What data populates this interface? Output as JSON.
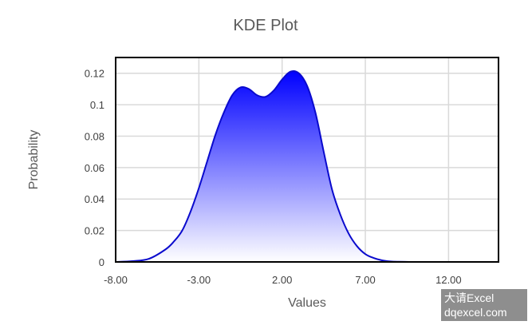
{
  "chart_data": {
    "type": "area",
    "title": "KDE Plot",
    "xlabel": "Values",
    "ylabel": "Probability",
    "xlim": [
      -8,
      15
    ],
    "ylim": [
      0,
      0.13
    ],
    "x_ticks": [
      -8,
      -3,
      2,
      7,
      12
    ],
    "x_tick_labels": [
      "-8.00",
      "-3.00",
      "2.00",
      "7.00",
      "12.00"
    ],
    "y_ticks": [
      0,
      0.02,
      0.04,
      0.06,
      0.08,
      0.1,
      0.12
    ],
    "y_tick_labels": [
      "0",
      "0.02",
      "0.04",
      "0.06",
      "0.08",
      "0.1",
      "0.12"
    ],
    "grid": true,
    "series": [
      {
        "x": [
          -8,
          -7,
          -6,
          -5,
          -4.5,
          -4,
          -3.5,
          -3,
          -2.5,
          -2,
          -1.5,
          -1,
          -0.5,
          0,
          0.5,
          1,
          1.5,
          2,
          2.5,
          3,
          3.5,
          4,
          4.5,
          5,
          5.5,
          6,
          6.5,
          7,
          7.5,
          8,
          8.5,
          9,
          10,
          11,
          12,
          13,
          14,
          15
        ],
        "y": [
          0,
          0.0005,
          0.002,
          0.008,
          0.013,
          0.02,
          0.032,
          0.047,
          0.064,
          0.081,
          0.095,
          0.106,
          0.111,
          0.11,
          0.106,
          0.105,
          0.109,
          0.116,
          0.121,
          0.12,
          0.112,
          0.095,
          0.07,
          0.046,
          0.03,
          0.018,
          0.01,
          0.005,
          0.0025,
          0.001,
          0.0003,
          0.0001,
          0,
          0,
          0,
          0,
          0,
          0
        ]
      }
    ],
    "colors": {
      "line": "#0a0acd",
      "fill_top": "#0000ff",
      "fill_bottom": "#ffffff"
    }
  },
  "watermark": {
    "line1": "大请Excel",
    "line2": "dqexcel.com"
  }
}
